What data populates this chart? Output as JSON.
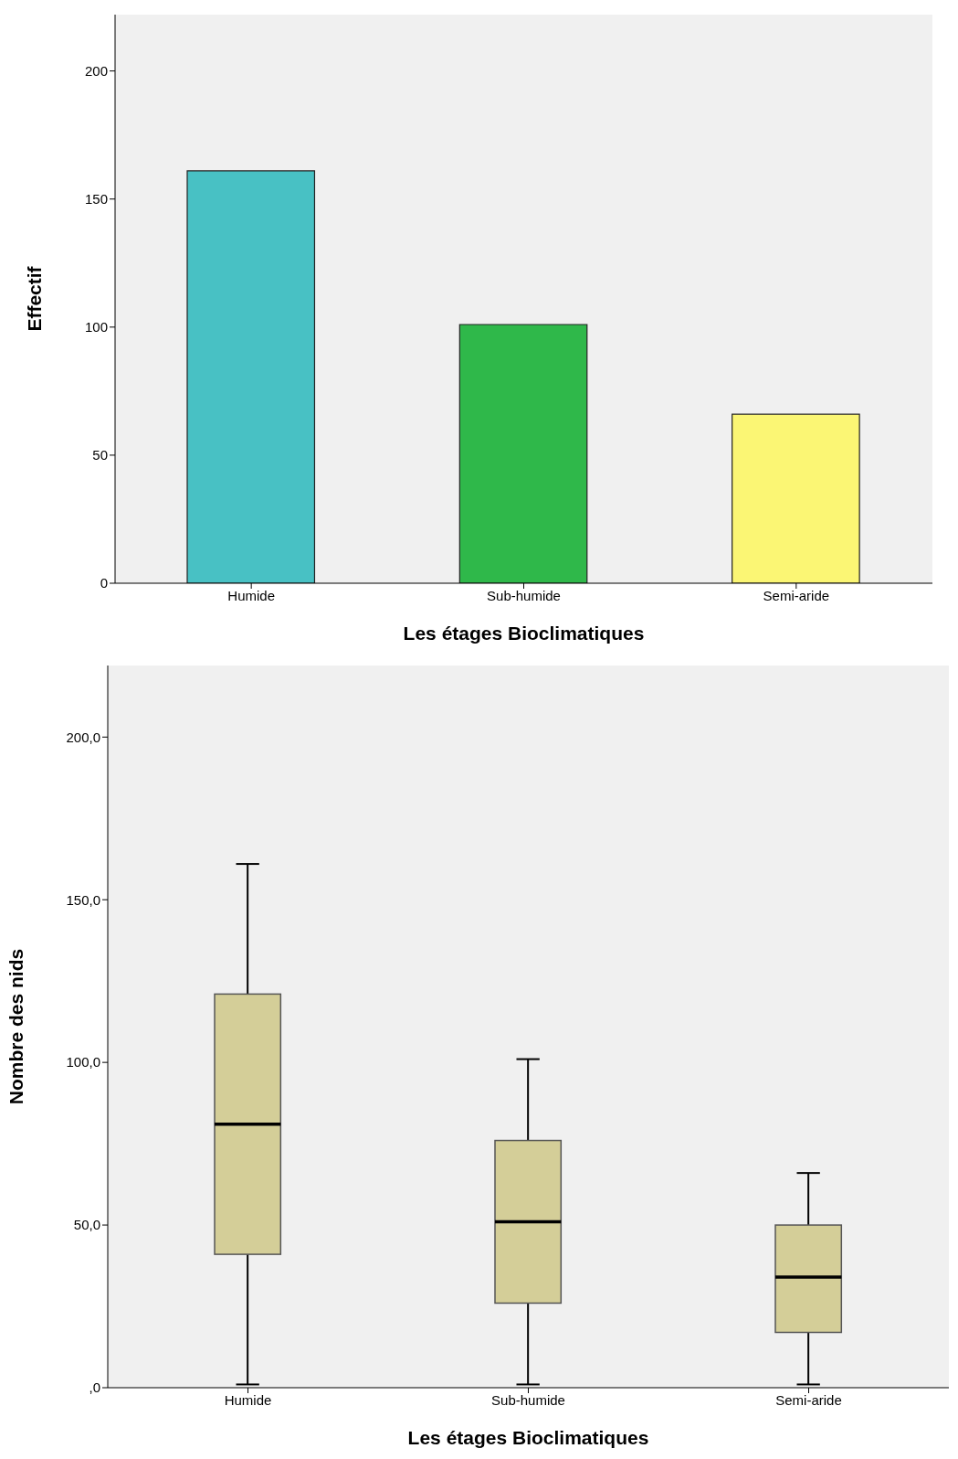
{
  "chart_data": [
    {
      "type": "bar",
      "xlabel": "Les étages Bioclimatiques",
      "ylabel": "Effectif",
      "categories": [
        "Humide",
        "Sub-humide",
        "Semi-aride"
      ],
      "values": [
        161,
        101,
        66
      ],
      "colors": [
        "#48c1c4",
        "#2fb84a",
        "#fbf674"
      ],
      "ylim": [
        0,
        222
      ],
      "yticks": [
        0,
        50,
        100,
        150,
        200
      ]
    },
    {
      "type": "box",
      "xlabel": "Les étages Bioclimatiques",
      "ylabel": "Nombre des nids",
      "categories": [
        "Humide",
        "Sub-humide",
        "Semi-aride"
      ],
      "color": "#d4ce98",
      "boxes": [
        {
          "low": 1,
          "q1": 41,
          "median": 81,
          "q3": 121,
          "high": 161
        },
        {
          "low": 1,
          "q1": 26,
          "median": 51,
          "q3": 76,
          "high": 101
        },
        {
          "low": 1,
          "q1": 17,
          "median": 34,
          "q3": 50,
          "high": 66
        }
      ],
      "ylim": [
        0,
        222
      ],
      "yticks": [
        {
          "value": 0,
          "label": ",0"
        },
        {
          "value": 50,
          "label": "50,0"
        },
        {
          "value": 100,
          "label": "100,0"
        },
        {
          "value": 150,
          "label": "150,0"
        },
        {
          "value": 200,
          "label": "200,0"
        }
      ]
    }
  ]
}
